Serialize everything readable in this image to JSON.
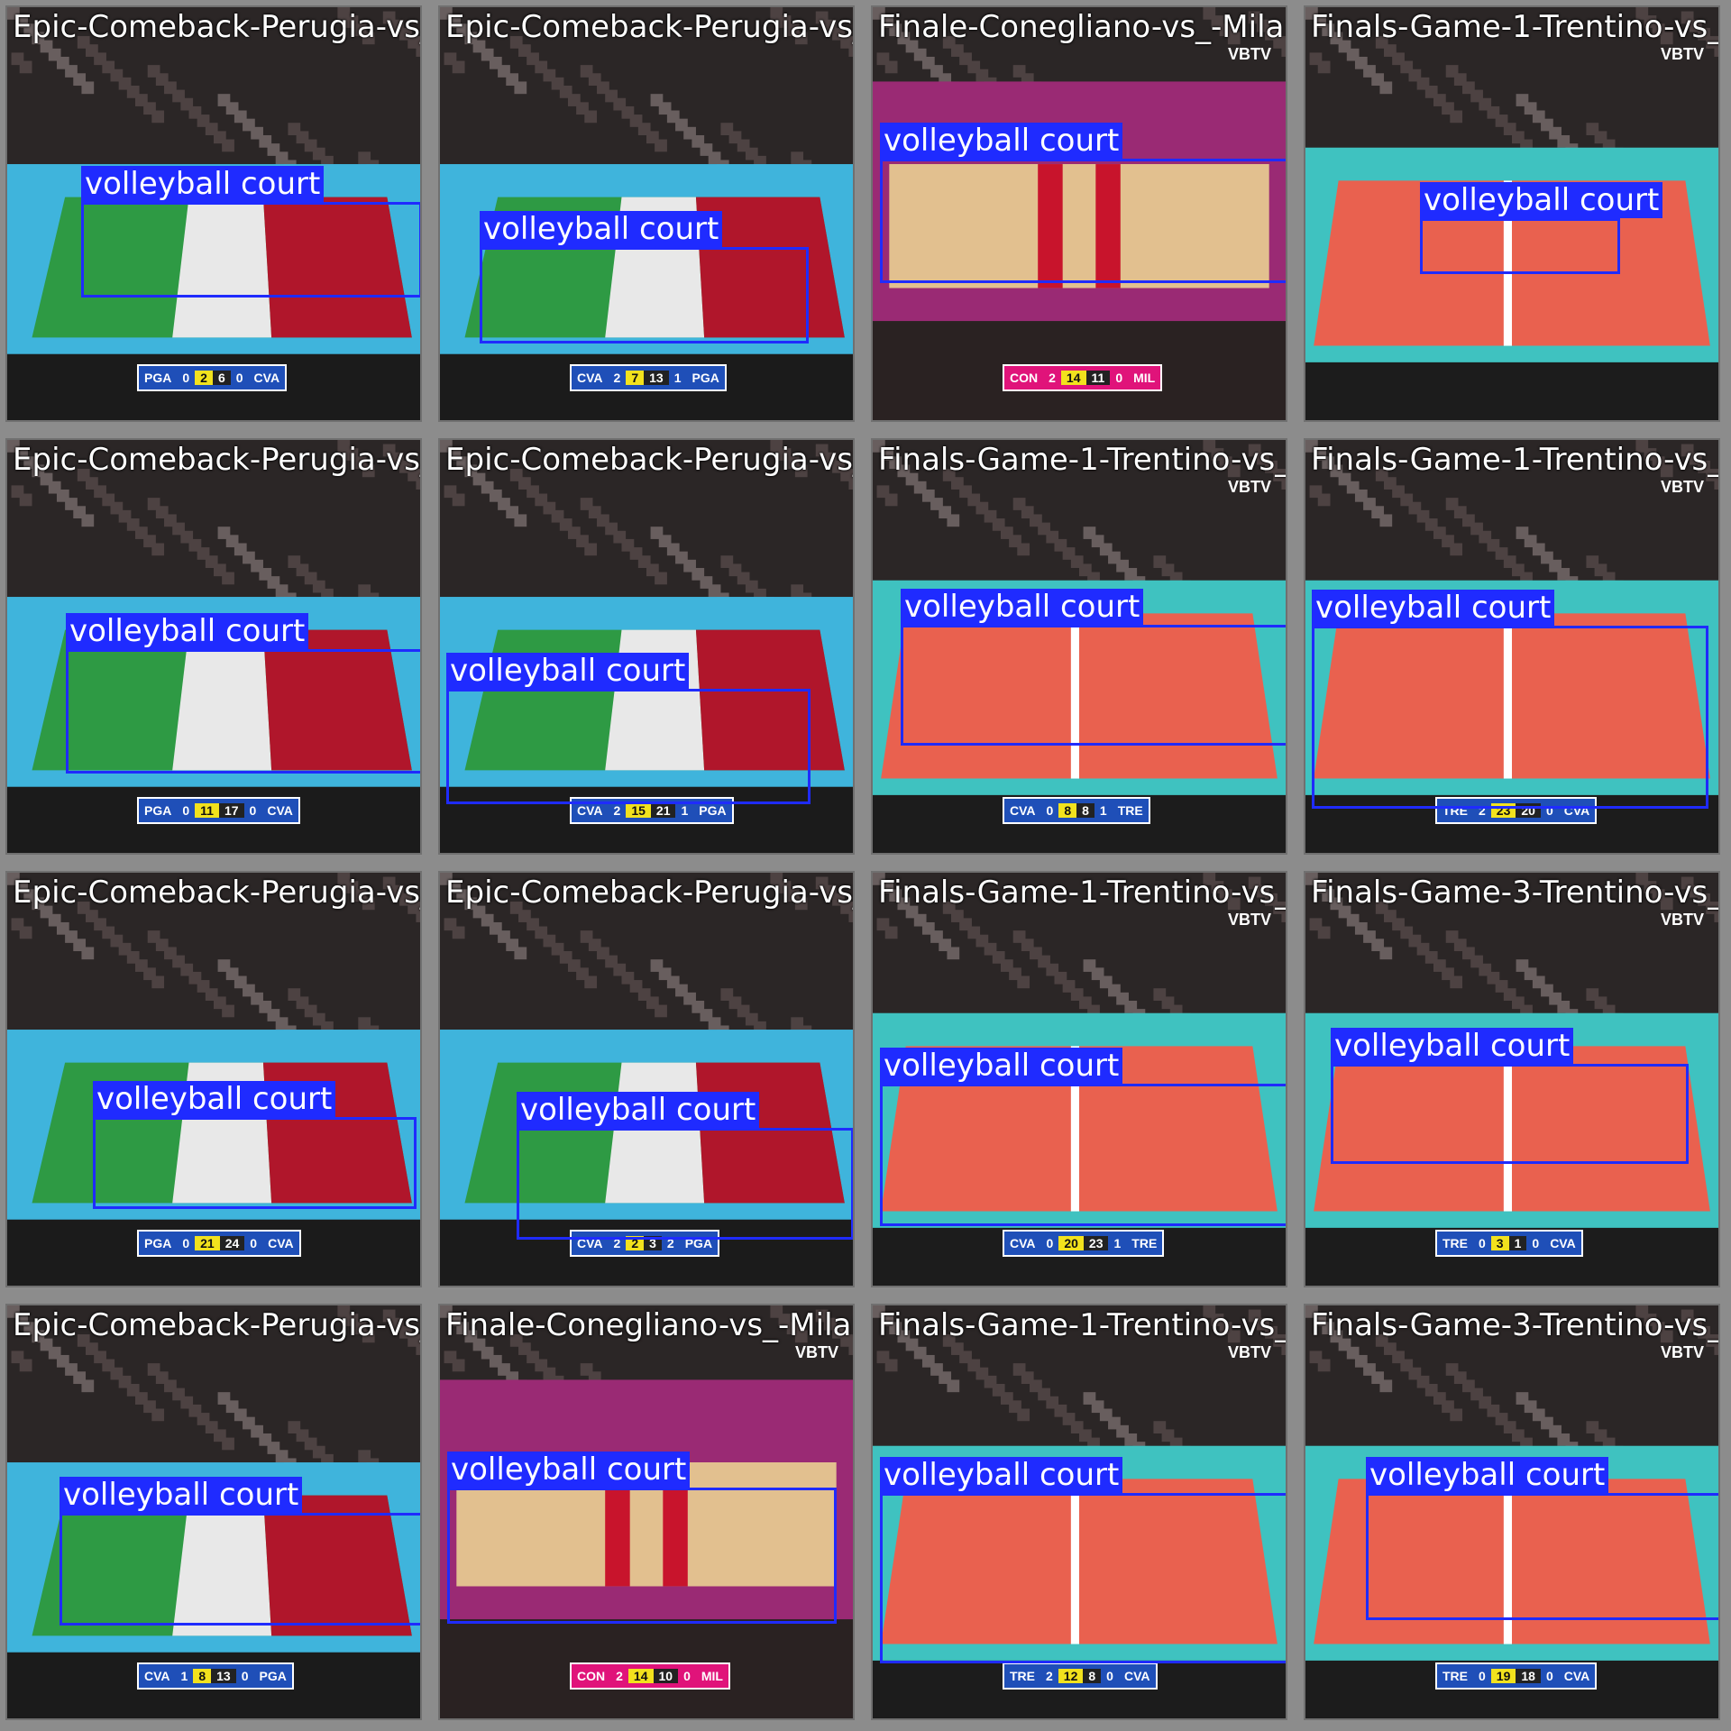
{
  "label_text": "volleyball court",
  "colors": {
    "box": "#1f2bff",
    "crowd": "#2b2626",
    "floor_blue": "#3fb4dc",
    "court_green": "#2e9a44",
    "court_white": "#e8e8e8",
    "court_red": "#b0162b",
    "court_salmon": "#e9614f",
    "floor_teal": "#3fc2c0",
    "court_beige": "#e2c08f",
    "floor_purple": "#9a2a74",
    "score_blue": "#1f4fb8",
    "score_magenta": "#e0137a"
  },
  "tiles": [
    {
      "name": "Epic-Comeback-Perugia-vs_",
      "theme": "italy",
      "score": [
        "PGA",
        "0",
        "2",
        "6",
        "0",
        "CVA"
      ],
      "vbtv": ""
    },
    {
      "name": "Epic-Comeback-Perugia-vs_",
      "theme": "italy",
      "score": [
        "CVA",
        "2",
        "7",
        "13",
        "1",
        "PGA"
      ],
      "vbtv": ""
    },
    {
      "name": "Finale-Conegliano-vs_-Milano-highlights",
      "theme": "beige",
      "score": [
        "CON",
        "2",
        "14",
        "11",
        "0",
        "MIL"
      ],
      "vbtv": "VBTV"
    },
    {
      "name": "Finals-Game-1-Trentino-vs_",
      "theme": "red",
      "score": [],
      "vbtv": "VBTV"
    },
    {
      "name": "Epic-Comeback-Perugia-vs_",
      "theme": "italy",
      "score": [
        "PGA",
        "0",
        "11",
        "17",
        "0",
        "CVA"
      ],
      "vbtv": ""
    },
    {
      "name": "Epic-Comeback-Perugia-vs_",
      "theme": "italy",
      "score": [
        "CVA",
        "2",
        "15",
        "21",
        "1",
        "PGA"
      ],
      "vbtv": ""
    },
    {
      "name": "Finals-Game-1-Trentino-vs_",
      "theme": "red",
      "score": [
        "CVA",
        "0",
        "8",
        "8",
        "1",
        "TRE"
      ],
      "vbtv": "VBTV"
    },
    {
      "name": "Finals-Game-1-Trentino-vs_",
      "theme": "red",
      "score": [
        "TRE",
        "2",
        "23",
        "20",
        "0",
        "CVA"
      ],
      "vbtv": "VBTV"
    },
    {
      "name": "Epic-Comeback-Perugia-vs_",
      "theme": "italy",
      "score": [
        "PGA",
        "0",
        "21",
        "24",
        "0",
        "CVA"
      ],
      "vbtv": ""
    },
    {
      "name": "Epic-Comeback-Perugia-vs_",
      "theme": "italy",
      "score": [
        "CVA",
        "2",
        "2",
        "3",
        "2",
        "PGA"
      ],
      "vbtv": ""
    },
    {
      "name": "Finals-Game-1-Trentino-vs_",
      "theme": "red",
      "score": [
        "CVA",
        "0",
        "20",
        "23",
        "1",
        "TRE"
      ],
      "vbtv": "VBTV"
    },
    {
      "name": "Finals-Game-3-Trentino-vs_",
      "theme": "red",
      "score": [
        "TRE",
        "0",
        "3",
        "1",
        "0",
        "CVA"
      ],
      "vbtv": "VBTV"
    },
    {
      "name": "Epic-Comeback-Perugia-vs_",
      "theme": "italy",
      "score": [
        "CVA",
        "1",
        "8",
        "13",
        "0",
        "PGA"
      ],
      "vbtv": ""
    },
    {
      "name": "Finale-Conegliano-vs_-Milano-highlights",
      "theme": "beige",
      "score": [
        "CON",
        "2",
        "14",
        "10",
        "0",
        "MIL"
      ],
      "vbtv": "VBTV"
    },
    {
      "name": "Finals-Game-1-Trentino-vs_",
      "theme": "red",
      "score": [
        "TRE",
        "2",
        "12",
        "8",
        "0",
        "CVA"
      ],
      "vbtv": "VBTV"
    },
    {
      "name": "Finals-Game-3-Trentino-vs_",
      "theme": "red",
      "score": [
        "TRE",
        "0",
        "19",
        "18",
        "0",
        "CVA"
      ],
      "vbtv": "VBTV"
    }
  ]
}
